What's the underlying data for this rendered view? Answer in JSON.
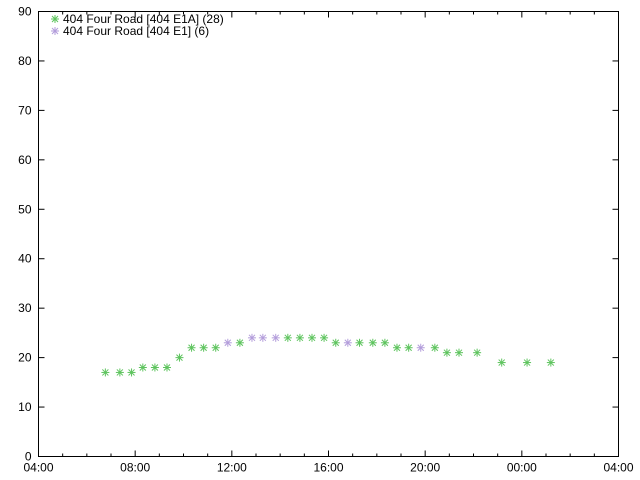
{
  "chart_data": {
    "type": "scatter",
    "title": "",
    "xlabel": "",
    "ylabel": "",
    "xlim": [
      "04:00",
      "04:00 (+1 day)"
    ],
    "ylim": [
      0,
      90
    ],
    "x_ticks": [
      "04:00",
      "08:00",
      "12:00",
      "16:00",
      "20:00",
      "00:00",
      "04:00"
    ],
    "y_ticks": [
      "0",
      "10",
      "20",
      "30",
      "40",
      "50",
      "60",
      "70",
      "80",
      "90"
    ],
    "grid": false,
    "legend_position": "top-left",
    "marker": "asterisk",
    "series": [
      {
        "name": "404 Four Road [404 E1A] (28)",
        "color": "#5ec45e",
        "points": [
          [
            "06:46",
            17
          ],
          [
            "07:22",
            17
          ],
          [
            "07:51",
            17
          ],
          [
            "08:19",
            18
          ],
          [
            "08:49",
            18
          ],
          [
            "09:19",
            18
          ],
          [
            "09:50",
            20
          ],
          [
            "10:20",
            22
          ],
          [
            "10:50",
            22
          ],
          [
            "11:20",
            22
          ],
          [
            "12:20",
            23
          ],
          [
            "14:19",
            24
          ],
          [
            "14:49",
            24
          ],
          [
            "15:19",
            24
          ],
          [
            "15:49",
            24
          ],
          [
            "16:18",
            23
          ],
          [
            "17:17",
            23
          ],
          [
            "17:50",
            23
          ],
          [
            "18:20",
            23
          ],
          [
            "18:50",
            22
          ],
          [
            "19:19",
            22
          ],
          [
            "20:24",
            22
          ],
          [
            "20:54",
            21
          ],
          [
            "21:24",
            21
          ],
          [
            "22:09",
            21
          ],
          [
            "23:10",
            19
          ],
          [
            "00:13",
            19
          ],
          [
            "01:12",
            19
          ]
        ]
      },
      {
        "name": "404 Four Road [404 E1] (6)",
        "color": "#b39ddb",
        "points": [
          [
            "11:50",
            23
          ],
          [
            "12:50",
            24
          ],
          [
            "13:17",
            24
          ],
          [
            "13:49",
            24
          ],
          [
            "16:48",
            23
          ],
          [
            "19:49",
            22
          ]
        ]
      }
    ]
  }
}
